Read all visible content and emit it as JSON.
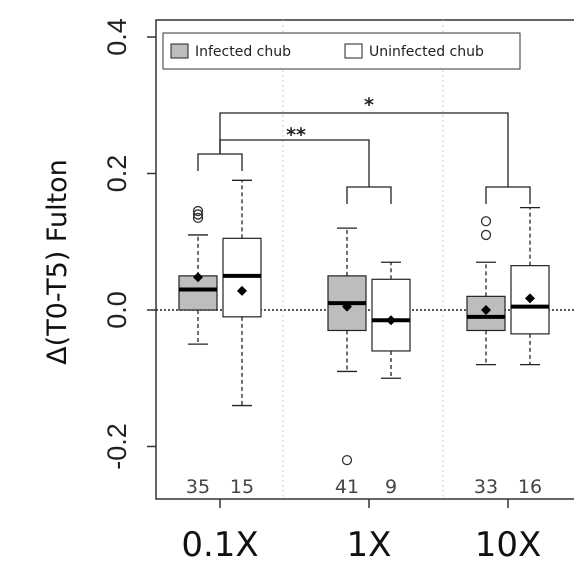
{
  "chart_data": {
    "type": "boxplot",
    "ylabel": "Δ(T0-T5) Fulton",
    "ylim": [
      -0.28,
      0.42
    ],
    "yticks": [
      -0.2,
      0.0,
      0.2,
      0.4
    ],
    "ytick_labels": [
      "-0.2",
      "0.0",
      "0.2",
      "0.4"
    ],
    "categories": [
      "0.1X",
      "1X",
      "10X"
    ],
    "legend": {
      "position": "top",
      "entries": [
        "Infected chub",
        "Uninfected chub"
      ]
    },
    "series": [
      {
        "name": "Infected chub",
        "color": "#bdbdbd",
        "boxes": [
          {
            "whisker_low": -0.05,
            "q1": 0.0,
            "median": 0.03,
            "q3": 0.05,
            "whisker_high": 0.11,
            "mean": 0.048,
            "outliers": [
              0.135,
              0.14,
              0.145
            ],
            "n": "35"
          },
          {
            "whisker_low": -0.09,
            "q1": -0.03,
            "median": 0.01,
            "q3": 0.05,
            "whisker_high": 0.12,
            "mean": 0.005,
            "outliers": [
              -0.22
            ],
            "n": "41"
          },
          {
            "whisker_low": -0.08,
            "q1": -0.03,
            "median": -0.01,
            "q3": 0.02,
            "whisker_high": 0.07,
            "mean": 0.0,
            "outliers": [
              0.11,
              0.13
            ],
            "n": "33"
          }
        ]
      },
      {
        "name": "Uninfected chub",
        "color": "#ffffff",
        "boxes": [
          {
            "whisker_low": -0.14,
            "q1": -0.01,
            "median": 0.05,
            "q3": 0.105,
            "whisker_high": 0.19,
            "mean": 0.028,
            "outliers": [],
            "n": "15"
          },
          {
            "whisker_low": -0.1,
            "q1": -0.06,
            "median": -0.015,
            "q3": 0.045,
            "whisker_high": 0.07,
            "mean": -0.015,
            "outliers": [],
            "n": "9"
          },
          {
            "whisker_low": -0.08,
            "q1": -0.035,
            "median": 0.005,
            "q3": 0.065,
            "whisker_high": 0.15,
            "mean": 0.017,
            "outliers": [],
            "n": "16"
          }
        ]
      }
    ],
    "reference_line": 0.0,
    "significance": [
      {
        "from": "0.1X",
        "to": "1X",
        "label": "**"
      },
      {
        "from": "0.1X",
        "to": "10X",
        "label": "*"
      }
    ]
  }
}
